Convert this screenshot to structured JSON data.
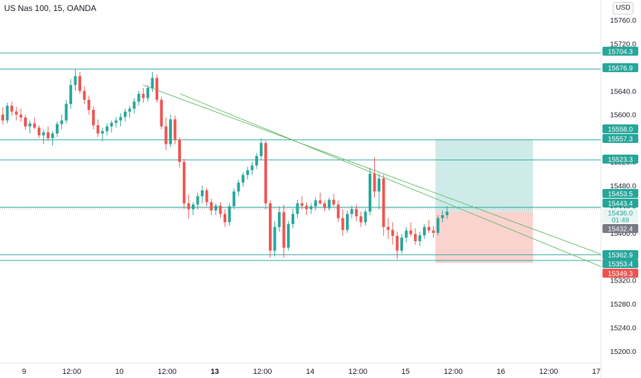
{
  "header": {
    "symbol_title": "US Nas 100, 15, OANDA",
    "currency": "USD"
  },
  "colors": {
    "up": "#26a69a",
    "down": "#ef5350",
    "level_line": "#26a69a",
    "trend_line": "#66bb6a",
    "target_zone": "#26a69a",
    "stop_zone": "#f28b82",
    "price_tag": "#787b86",
    "axis_text": "#131722"
  },
  "chart_data": {
    "type": "candlestick",
    "y_axis": {
      "range": [
        15185,
        15780
      ],
      "ticks": [
        "15760.0",
        "15720.0",
        "15680.0",
        "15640.0",
        "15600.0",
        "15560.0",
        "15520.0",
        "15480.0",
        "15440.0",
        "15400.0",
        "15360.0",
        "15320.0",
        "15280.0",
        "15240.0",
        "15200.0"
      ]
    },
    "x_axis": {
      "ticks": [
        {
          "label": "9",
          "bold": false
        },
        {
          "label": "12:00",
          "bold": false
        },
        {
          "label": "10",
          "bold": false
        },
        {
          "label": "12:00",
          "bold": false
        },
        {
          "label": "13",
          "bold": true
        },
        {
          "label": "12:00",
          "bold": false
        },
        {
          "label": "14",
          "bold": false
        },
        {
          "label": "12:00",
          "bold": false
        },
        {
          "label": "15",
          "bold": false
        },
        {
          "label": "12:00",
          "bold": false
        },
        {
          "label": "16",
          "bold": false
        },
        {
          "label": "12:00",
          "bold": false
        },
        {
          "label": "17",
          "bold": false
        }
      ]
    },
    "horizontal_levels": [
      15704.3,
      15676.9,
      15557.3,
      15523.3,
      15443.4,
      15362.9,
      15353.4
    ],
    "price_labels": [
      {
        "text": "15704.3",
        "kind": "level"
      },
      {
        "text": "15676.9",
        "kind": "level"
      },
      {
        "text": "15558.0",
        "kind": "level"
      },
      {
        "text": "15557.3",
        "kind": "level"
      },
      {
        "text": "15523.3",
        "kind": "level"
      },
      {
        "text": "15453.5",
        "kind": "level"
      },
      {
        "text": "15443.4",
        "kind": "level"
      },
      {
        "text": "15436.0",
        "kind": "current"
      },
      {
        "text": "01:49",
        "kind": "countdown"
      },
      {
        "text": "15432.4",
        "kind": "gray"
      },
      {
        "text": "15362.9",
        "kind": "level"
      },
      {
        "text": "15353.4",
        "kind": "level"
      },
      {
        "text": "15349.3",
        "kind": "stop"
      }
    ],
    "position": {
      "entry": 15436.0,
      "target": 15558.0,
      "stop": 15349.3
    },
    "trend_lines": [
      {
        "from_price": 15650,
        "to_price": 15364
      },
      {
        "from_price": 15635,
        "to_price": 15343
      }
    ],
    "candles": [
      [
        15600,
        15612,
        15583,
        15590
      ],
      [
        15590,
        15620,
        15585,
        15615
      ],
      [
        15615,
        15622,
        15598,
        15605
      ],
      [
        15605,
        15613,
        15590,
        15600
      ],
      [
        15600,
        15610,
        15588,
        15595
      ],
      [
        15595,
        15600,
        15574,
        15580
      ],
      [
        15580,
        15590,
        15568,
        15585
      ],
      [
        15585,
        15595,
        15575,
        15578
      ],
      [
        15578,
        15582,
        15560,
        15565
      ],
      [
        15565,
        15575,
        15550,
        15570
      ],
      [
        15570,
        15580,
        15555,
        15560
      ],
      [
        15560,
        15572,
        15548,
        15568
      ],
      [
        15568,
        15588,
        15562,
        15584
      ],
      [
        15584,
        15600,
        15575,
        15590
      ],
      [
        15590,
        15625,
        15585,
        15618
      ],
      [
        15618,
        15660,
        15610,
        15650
      ],
      [
        15650,
        15676,
        15640,
        15665
      ],
      [
        15665,
        15672,
        15635,
        15640
      ],
      [
        15640,
        15648,
        15618,
        15625
      ],
      [
        15625,
        15632,
        15600,
        15608
      ],
      [
        15608,
        15614,
        15575,
        15582
      ],
      [
        15582,
        15592,
        15562,
        15568
      ],
      [
        15568,
        15578,
        15555,
        15572
      ],
      [
        15572,
        15585,
        15565,
        15580
      ],
      [
        15580,
        15590,
        15570,
        15586
      ],
      [
        15586,
        15596,
        15578,
        15590
      ],
      [
        15590,
        15602,
        15580,
        15596
      ],
      [
        15596,
        15610,
        15588,
        15605
      ],
      [
        15605,
        15615,
        15595,
        15610
      ],
      [
        15610,
        15628,
        15602,
        15622
      ],
      [
        15622,
        15640,
        15615,
        15635
      ],
      [
        15635,
        15645,
        15620,
        15628
      ],
      [
        15628,
        15650,
        15622,
        15645
      ],
      [
        15645,
        15672,
        15638,
        15662
      ],
      [
        15662,
        15668,
        15620,
        15625
      ],
      [
        15625,
        15630,
        15575,
        15580
      ],
      [
        15580,
        15595,
        15540,
        15550
      ],
      [
        15550,
        15600,
        15545,
        15592
      ],
      [
        15592,
        15598,
        15550,
        15558
      ],
      [
        15558,
        15562,
        15510,
        15520
      ],
      [
        15520,
        15525,
        15440,
        15450
      ],
      [
        15450,
        15465,
        15424,
        15440
      ],
      [
        15440,
        15452,
        15430,
        15448
      ],
      [
        15448,
        15468,
        15440,
        15462
      ],
      [
        15462,
        15480,
        15450,
        15472
      ],
      [
        15472,
        15476,
        15445,
        15452
      ],
      [
        15452,
        15458,
        15430,
        15438
      ],
      [
        15438,
        15450,
        15430,
        15446
      ],
      [
        15446,
        15452,
        15425,
        15432
      ],
      [
        15432,
        15440,
        15410,
        15418
      ],
      [
        15418,
        15450,
        15412,
        15445
      ],
      [
        15445,
        15475,
        15440,
        15470
      ],
      [
        15470,
        15490,
        15462,
        15485
      ],
      [
        15485,
        15502,
        15478,
        15498
      ],
      [
        15498,
        15512,
        15490,
        15506
      ],
      [
        15506,
        15520,
        15498,
        15514
      ],
      [
        15514,
        15535,
        15508,
        15530
      ],
      [
        15530,
        15560,
        15524,
        15552
      ],
      [
        15552,
        15556,
        15440,
        15450
      ],
      [
        15450,
        15455,
        15358,
        15370
      ],
      [
        15370,
        15420,
        15360,
        15410
      ],
      [
        15410,
        15445,
        15402,
        15435
      ],
      [
        15435,
        15448,
        15358,
        15375
      ],
      [
        15375,
        15420,
        15370,
        15415
      ],
      [
        15415,
        15440,
        15408,
        15432
      ],
      [
        15432,
        15456,
        15425,
        15450
      ],
      [
        15450,
        15462,
        15440,
        15446
      ],
      [
        15446,
        15452,
        15430,
        15440
      ],
      [
        15440,
        15450,
        15432,
        15445
      ],
      [
        15445,
        15460,
        15438,
        15455
      ],
      [
        15455,
        15468,
        15448,
        15450
      ],
      [
        15450,
        15455,
        15436,
        15442
      ],
      [
        15442,
        15460,
        15438,
        15456
      ],
      [
        15456,
        15466,
        15445,
        15448
      ],
      [
        15448,
        15455,
        15418,
        15425
      ],
      [
        15425,
        15440,
        15395,
        15405
      ],
      [
        15405,
        15438,
        15400,
        15432
      ],
      [
        15432,
        15446,
        15425,
        15440
      ],
      [
        15440,
        15448,
        15420,
        15428
      ],
      [
        15428,
        15436,
        15410,
        15418
      ],
      [
        15418,
        15440,
        15412,
        15436
      ],
      [
        15436,
        15510,
        15430,
        15500
      ],
      [
        15500,
        15528,
        15460,
        15470
      ],
      [
        15470,
        15500,
        15440,
        15492
      ],
      [
        15492,
        15498,
        15395,
        15410
      ],
      [
        15410,
        15425,
        15390,
        15405
      ],
      [
        15405,
        15418,
        15380,
        15395
      ],
      [
        15395,
        15402,
        15356,
        15370
      ],
      [
        15370,
        15398,
        15365,
        15392
      ],
      [
        15392,
        15410,
        15384,
        15404
      ],
      [
        15404,
        15418,
        15394,
        15398
      ],
      [
        15398,
        15408,
        15380,
        15386
      ],
      [
        15386,
        15402,
        15378,
        15396
      ],
      [
        15396,
        15415,
        15390,
        15410
      ],
      [
        15410,
        15422,
        15400,
        15404
      ],
      [
        15404,
        15412,
        15392,
        15400
      ],
      [
        15400,
        15430,
        15396,
        15425
      ],
      [
        15425,
        15438,
        15418,
        15430
      ],
      [
        15430,
        15445,
        15424,
        15436
      ]
    ]
  }
}
